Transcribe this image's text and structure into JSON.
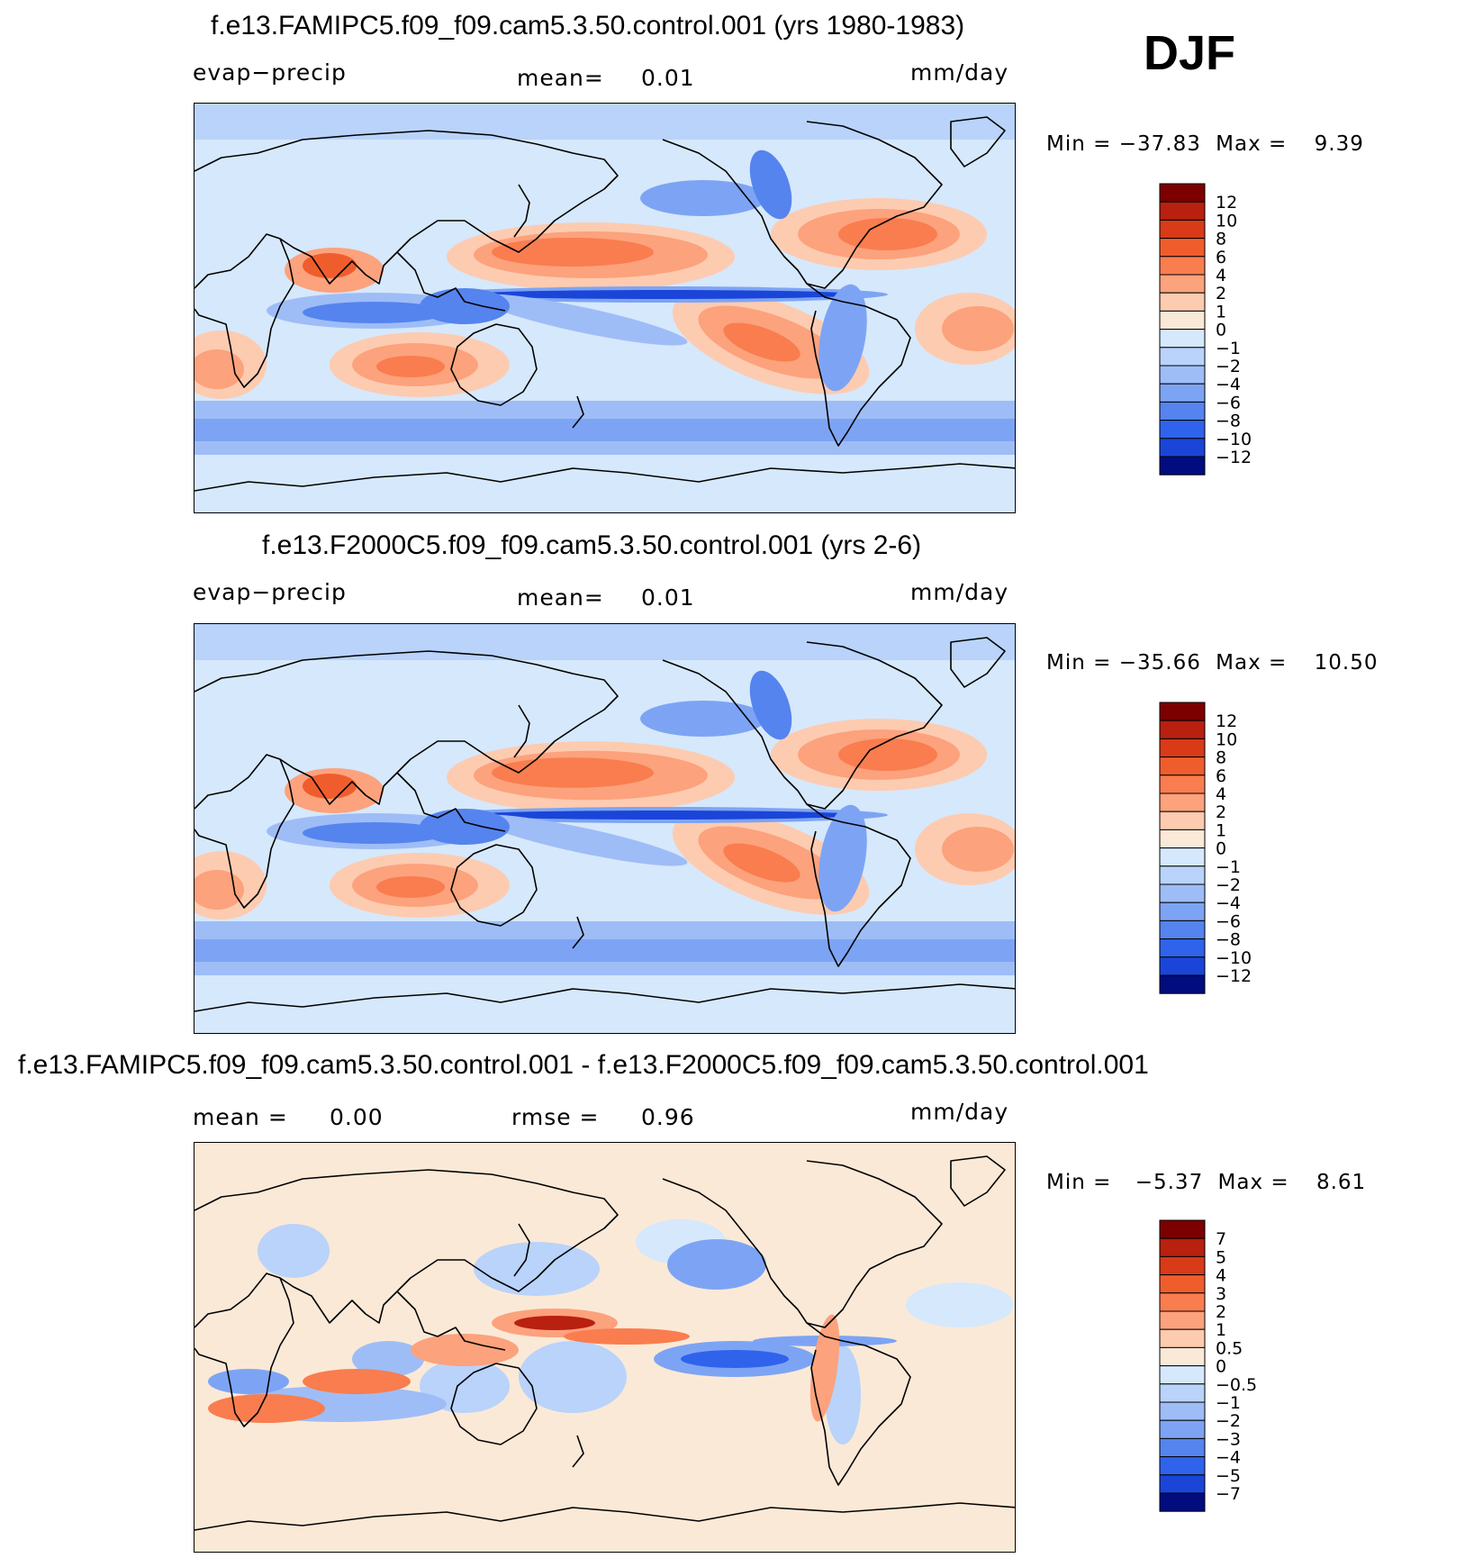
{
  "season": "DJF",
  "units": "mm/day",
  "colors": {
    "pos": [
      "#fbe9d7",
      "#fdcbb0",
      "#fca27d",
      "#f97d4f",
      "#f05d2d",
      "#d93a17",
      "#b82010",
      "#7c0000"
    ],
    "neg": [
      "#d6e8fb",
      "#b9d3fa",
      "#9ebdf7",
      "#7da4f4",
      "#5584ef",
      "#2f63eb",
      "#1a45d8",
      "#0c2ab2",
      "#010c7e"
    ],
    "coast": "#000000"
  },
  "panels": [
    {
      "title": "f.e13.FAMIPC5.f09_f09.cam5.3.50.control.001 (yrs 1980-1983)",
      "left_label": "evap−precip",
      "center_label": "mean=",
      "center_value": "0.01",
      "right_label": "mm/day",
      "min_label": "Min",
      "min_value": "−37.83",
      "max_label": "Max",
      "max_value": "9.39"
    },
    {
      "title": "f.e13.F2000C5.f09_f09.cam5.3.50.control.001 (yrs 2-6)",
      "left_label": "evap−precip",
      "center_label": "mean=",
      "center_value": "0.01",
      "right_label": "mm/day",
      "min_label": "Min",
      "min_value": "−35.66",
      "max_label": "Max",
      "max_value": "10.50"
    },
    {
      "title": "f.e13.FAMIPC5.f09_f09.cam5.3.50.control.001 - f.e13.F2000C5.f09_f09.cam5.3.50.control.001",
      "left_label": "mean =",
      "left_value": "0.00",
      "center_label": "rmse =",
      "center_value": "0.96",
      "right_label": "mm/day",
      "min_label": "Min",
      "min_value": "−5.37",
      "max_label": "Max",
      "max_value": "8.61"
    }
  ],
  "chart_data": [
    {
      "type": "heatmap",
      "title": "f.e13.FAMIPC5.f09_f09.cam5.3.50.control.001 (yrs 1980-1983)",
      "variable": "evap−precip",
      "units": "mm/day",
      "mean": 0.01,
      "min": -37.83,
      "max": 9.39,
      "colorbar_levels": [
        "12",
        "10",
        "8",
        "6",
        "4",
        "2",
        "1",
        "0",
        "−1",
        "−2",
        "−4",
        "−6",
        "−8",
        "−10",
        "−12"
      ],
      "projection": "cylindrical equidistant, Pacific-centered"
    },
    {
      "type": "heatmap",
      "title": "f.e13.F2000C5.f09_f09.cam5.3.50.control.001 (yrs 2-6)",
      "variable": "evap−precip",
      "units": "mm/day",
      "mean": 0.01,
      "min": -35.66,
      "max": 10.5,
      "colorbar_levels": [
        "12",
        "10",
        "8",
        "6",
        "4",
        "2",
        "1",
        "0",
        "−1",
        "−2",
        "−4",
        "−6",
        "−8",
        "−10",
        "−12"
      ],
      "projection": "cylindrical equidistant, Pacific-centered"
    },
    {
      "type": "heatmap",
      "title": "f.e13.FAMIPC5.f09_f09.cam5.3.50.control.001 - f.e13.F2000C5.f09_f09.cam5.3.50.control.001",
      "units": "mm/day",
      "mean": 0.0,
      "rmse": 0.96,
      "min": -5.37,
      "max": 8.61,
      "colorbar_levels": [
        "7",
        "5",
        "4",
        "3",
        "2",
        "1",
        "0.5",
        "0",
        "−0.5",
        "−1",
        "−2",
        "−3",
        "−4",
        "−5",
        "−7"
      ],
      "projection": "cylindrical equidistant, Pacific-centered"
    }
  ]
}
